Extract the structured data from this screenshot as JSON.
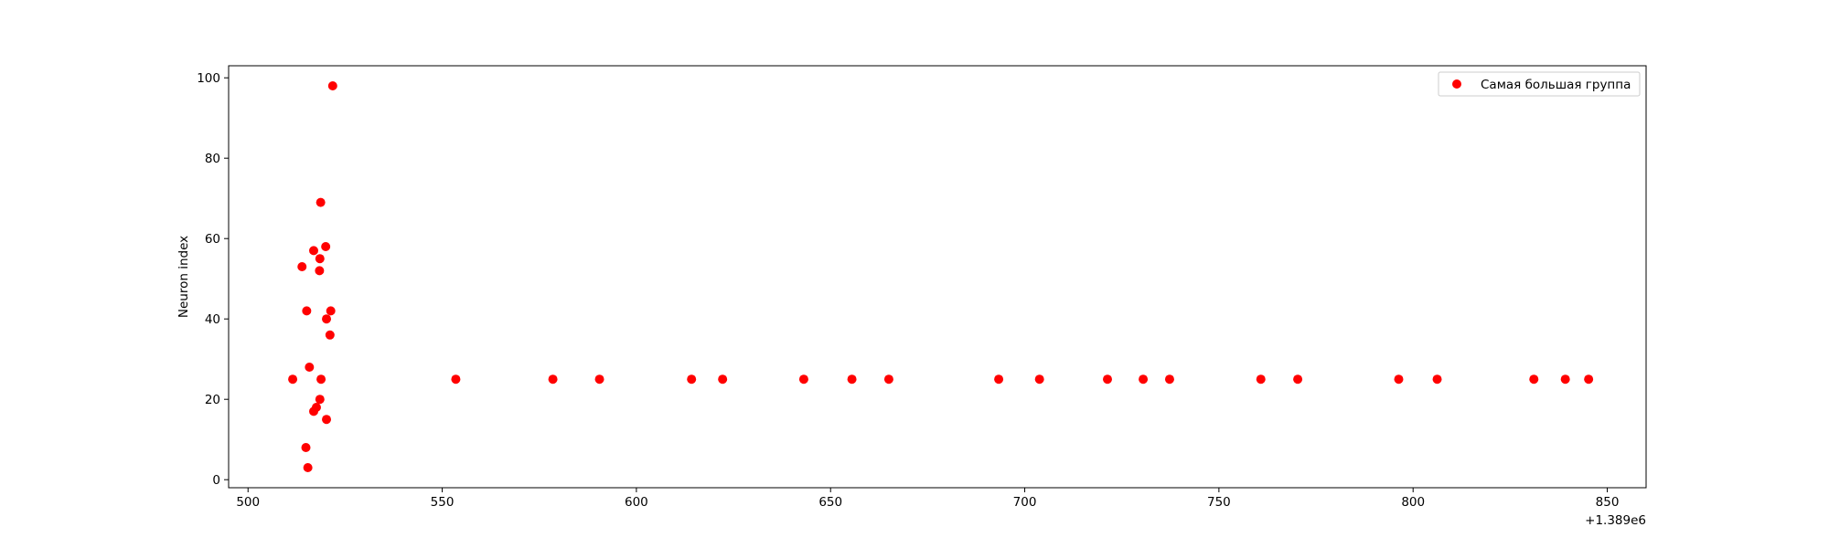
{
  "chart_data": {
    "type": "scatter",
    "title": "",
    "xlabel": "",
    "ylabel": "Neuron index",
    "x_offset_label": "+1.389e6",
    "xlim": [
      495,
      860
    ],
    "ylim": [
      -2,
      103
    ],
    "xticks": [
      500,
      550,
      600,
      650,
      700,
      750,
      800,
      850
    ],
    "yticks": [
      0,
      20,
      40,
      60,
      80,
      100
    ],
    "grid": false,
    "legend": {
      "placement": "top-right"
    },
    "series": [
      {
        "name": "Самая большая группа",
        "color": "#ff0000",
        "points": [
          {
            "x": 511.5,
            "y": 25
          },
          {
            "x": 513.9,
            "y": 53
          },
          {
            "x": 514.9,
            "y": 8
          },
          {
            "x": 515.1,
            "y": 42
          },
          {
            "x": 515.4,
            "y": 3
          },
          {
            "x": 515.8,
            "y": 28
          },
          {
            "x": 516.9,
            "y": 57
          },
          {
            "x": 516.9,
            "y": 17
          },
          {
            "x": 517.6,
            "y": 18
          },
          {
            "x": 518.4,
            "y": 52
          },
          {
            "x": 518.5,
            "y": 55
          },
          {
            "x": 518.5,
            "y": 20
          },
          {
            "x": 518.7,
            "y": 69
          },
          {
            "x": 518.8,
            "y": 25
          },
          {
            "x": 520.0,
            "y": 58
          },
          {
            "x": 520.2,
            "y": 40
          },
          {
            "x": 520.2,
            "y": 15
          },
          {
            "x": 521.1,
            "y": 36
          },
          {
            "x": 521.3,
            "y": 42
          },
          {
            "x": 521.8,
            "y": 98
          },
          {
            "x": 553.5,
            "y": 25
          },
          {
            "x": 578.5,
            "y": 25
          },
          {
            "x": 590.5,
            "y": 25
          },
          {
            "x": 614.2,
            "y": 25
          },
          {
            "x": 622.2,
            "y": 25
          },
          {
            "x": 643.1,
            "y": 25
          },
          {
            "x": 655.5,
            "y": 25
          },
          {
            "x": 665.0,
            "y": 25
          },
          {
            "x": 693.3,
            "y": 25
          },
          {
            "x": 703.8,
            "y": 25
          },
          {
            "x": 721.3,
            "y": 25
          },
          {
            "x": 730.5,
            "y": 25
          },
          {
            "x": 737.3,
            "y": 25
          },
          {
            "x": 760.8,
            "y": 25
          },
          {
            "x": 770.3,
            "y": 25
          },
          {
            "x": 796.3,
            "y": 25
          },
          {
            "x": 806.2,
            "y": 25
          },
          {
            "x": 831.1,
            "y": 25
          },
          {
            "x": 839.2,
            "y": 25
          },
          {
            "x": 845.2,
            "y": 25
          }
        ]
      }
    ]
  }
}
